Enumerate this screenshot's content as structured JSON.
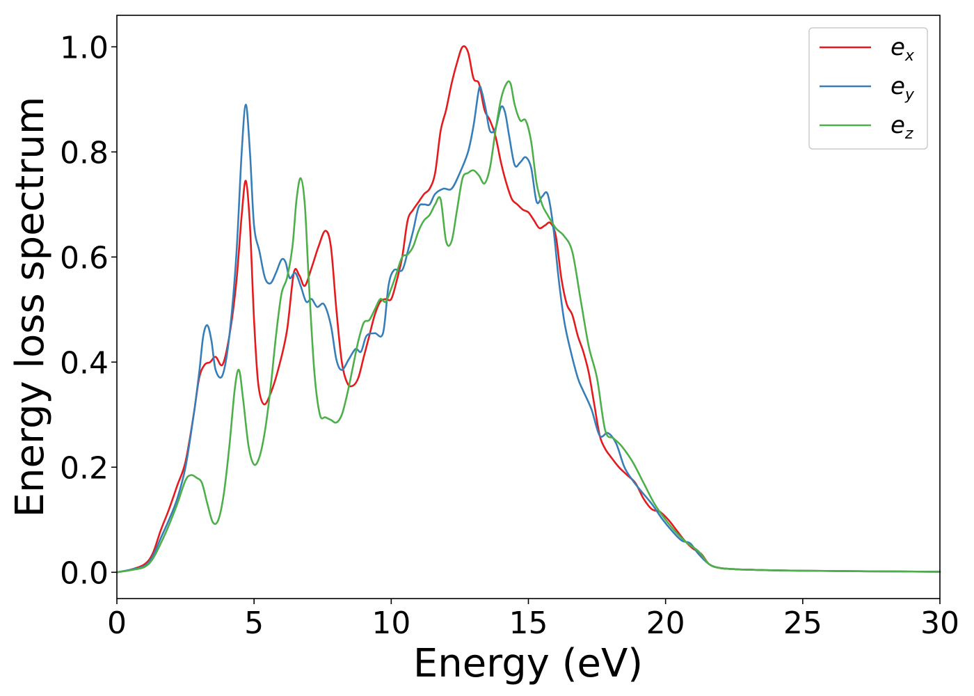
{
  "chart_data": {
    "type": "line",
    "title": "",
    "xlabel": "Energy (eV)",
    "ylabel": "Energy loss spectrum",
    "xlim": [
      0,
      30
    ],
    "ylim": [
      -0.05,
      1.06
    ],
    "xticks": [
      0,
      5,
      10,
      15,
      20,
      25,
      30
    ],
    "xtick_labels": [
      "0",
      "5",
      "10",
      "15",
      "20",
      "25",
      "30"
    ],
    "yticks": [
      0.0,
      0.2,
      0.4,
      0.6,
      0.8,
      1.0
    ],
    "ytick_labels": [
      "0.0",
      "0.2",
      "0.4",
      "0.6",
      "0.8",
      "1.0"
    ],
    "grid": false,
    "legend_position": "top-right",
    "series": [
      {
        "name": "e_x",
        "label_base": "e",
        "label_sub": "x",
        "color": "#e41a1c",
        "x": [
          0,
          0.5,
          1.0,
          1.3,
          1.6,
          1.9,
          2.2,
          2.5,
          2.8,
          3.0,
          3.2,
          3.4,
          3.6,
          3.85,
          4.1,
          4.35,
          4.55,
          4.7,
          4.85,
          5.0,
          5.15,
          5.35,
          5.6,
          5.9,
          6.2,
          6.45,
          6.65,
          6.85,
          7.1,
          7.35,
          7.6,
          7.8,
          8.0,
          8.2,
          8.4,
          8.6,
          8.8,
          9.0,
          9.2,
          9.4,
          9.6,
          9.8,
          10.0,
          10.2,
          10.4,
          10.6,
          10.8,
          11.0,
          11.2,
          11.4,
          11.6,
          11.8,
          12.0,
          12.2,
          12.4,
          12.6,
          12.8,
          13.0,
          13.2,
          13.4,
          13.6,
          13.8,
          14.0,
          14.2,
          14.4,
          14.6,
          14.8,
          15.0,
          15.2,
          15.4,
          15.6,
          15.8,
          16.0,
          16.2,
          16.4,
          16.6,
          16.8,
          17.0,
          17.2,
          17.4,
          17.6,
          17.8,
          18.0,
          18.3,
          18.6,
          18.9,
          19.2,
          19.5,
          19.8,
          20.1,
          20.4,
          20.7,
          21.0,
          21.3,
          21.6,
          22.0,
          22.5,
          23,
          25,
          30
        ],
        "y": [
          0,
          0.005,
          0.015,
          0.035,
          0.08,
          0.12,
          0.165,
          0.21,
          0.3,
          0.37,
          0.395,
          0.4,
          0.41,
          0.395,
          0.45,
          0.55,
          0.68,
          0.745,
          0.66,
          0.48,
          0.36,
          0.32,
          0.34,
          0.39,
          0.46,
          0.57,
          0.565,
          0.545,
          0.58,
          0.62,
          0.65,
          0.62,
          0.5,
          0.4,
          0.36,
          0.355,
          0.37,
          0.41,
          0.45,
          0.49,
          0.515,
          0.52,
          0.52,
          0.555,
          0.6,
          0.67,
          0.69,
          0.705,
          0.72,
          0.73,
          0.76,
          0.84,
          0.88,
          0.93,
          0.97,
          1.0,
          0.99,
          0.94,
          0.93,
          0.88,
          0.86,
          0.83,
          0.78,
          0.74,
          0.71,
          0.7,
          0.69,
          0.685,
          0.67,
          0.655,
          0.66,
          0.665,
          0.64,
          0.56,
          0.51,
          0.49,
          0.45,
          0.42,
          0.38,
          0.32,
          0.26,
          0.235,
          0.22,
          0.2,
          0.185,
          0.17,
          0.14,
          0.12,
          0.115,
          0.1,
          0.08,
          0.06,
          0.045,
          0.035,
          0.015,
          0.008,
          0.006,
          0.005,
          0.003,
          0.001
        ]
      },
      {
        "name": "e_y",
        "label_base": "e",
        "label_sub": "y",
        "color": "#377eb8",
        "x": [
          0,
          0.5,
          1.0,
          1.3,
          1.6,
          1.9,
          2.2,
          2.5,
          2.8,
          3.0,
          3.15,
          3.3,
          3.45,
          3.6,
          3.85,
          4.1,
          4.35,
          4.55,
          4.7,
          4.85,
          5.0,
          5.2,
          5.4,
          5.6,
          5.8,
          6.0,
          6.15,
          6.3,
          6.5,
          6.7,
          6.9,
          7.1,
          7.3,
          7.55,
          7.8,
          8.0,
          8.2,
          8.45,
          8.7,
          8.9,
          9.1,
          9.4,
          9.7,
          9.9,
          10.1,
          10.4,
          10.6,
          10.8,
          11.0,
          11.2,
          11.4,
          11.6,
          11.9,
          12.2,
          12.5,
          12.8,
          13.0,
          13.2,
          13.3,
          13.45,
          13.6,
          13.8,
          14.0,
          14.15,
          14.3,
          14.5,
          14.7,
          14.9,
          15.1,
          15.3,
          15.5,
          15.7,
          15.9,
          16.1,
          16.3,
          16.5,
          16.8,
          17.0,
          17.3,
          17.6,
          17.9,
          18.2,
          18.5,
          18.8,
          19.1,
          19.5,
          19.9,
          20.3,
          20.6,
          20.9,
          21.2,
          21.6,
          22.0,
          22.5,
          23,
          25,
          30
        ],
        "y": [
          0,
          0.005,
          0.012,
          0.03,
          0.065,
          0.1,
          0.14,
          0.2,
          0.3,
          0.38,
          0.45,
          0.47,
          0.44,
          0.385,
          0.375,
          0.45,
          0.6,
          0.8,
          0.89,
          0.8,
          0.66,
          0.61,
          0.56,
          0.55,
          0.57,
          0.595,
          0.59,
          0.56,
          0.57,
          0.545,
          0.515,
          0.52,
          0.505,
          0.51,
          0.47,
          0.405,
          0.385,
          0.405,
          0.425,
          0.42,
          0.45,
          0.455,
          0.455,
          0.545,
          0.575,
          0.575,
          0.61,
          0.65,
          0.695,
          0.7,
          0.7,
          0.72,
          0.73,
          0.73,
          0.76,
          0.8,
          0.85,
          0.92,
          0.915,
          0.88,
          0.84,
          0.845,
          0.885,
          0.875,
          0.83,
          0.775,
          0.78,
          0.79,
          0.77,
          0.705,
          0.715,
          0.72,
          0.66,
          0.56,
          0.48,
          0.43,
          0.37,
          0.345,
          0.31,
          0.26,
          0.265,
          0.245,
          0.2,
          0.175,
          0.155,
          0.13,
          0.1,
          0.075,
          0.06,
          0.055,
          0.035,
          0.015,
          0.008,
          0.006,
          0.005,
          0.003,
          0.001
        ]
      },
      {
        "name": "e_z",
        "label_base": "e",
        "label_sub": "z",
        "color": "#4daf4a",
        "x": [
          0,
          0.5,
          1.0,
          1.3,
          1.6,
          1.9,
          2.2,
          2.5,
          2.7,
          2.9,
          3.1,
          3.3,
          3.5,
          3.7,
          3.9,
          4.1,
          4.3,
          4.45,
          4.6,
          4.8,
          5.0,
          5.2,
          5.4,
          5.6,
          5.8,
          6.0,
          6.2,
          6.4,
          6.55,
          6.7,
          6.85,
          7.0,
          7.2,
          7.4,
          7.6,
          7.8,
          8.0,
          8.2,
          8.4,
          8.6,
          8.8,
          9.0,
          9.2,
          9.4,
          9.6,
          9.8,
          10.0,
          10.2,
          10.4,
          10.6,
          10.8,
          11.0,
          11.2,
          11.4,
          11.6,
          11.8,
          12.0,
          12.2,
          12.4,
          12.6,
          12.8,
          13.0,
          13.2,
          13.4,
          13.6,
          13.8,
          14.0,
          14.2,
          14.35,
          14.5,
          14.7,
          14.9,
          15.1,
          15.3,
          15.5,
          15.7,
          16.0,
          16.3,
          16.6,
          16.9,
          17.2,
          17.5,
          17.8,
          18.1,
          18.4,
          18.8,
          19.2,
          19.6,
          20.0,
          20.4,
          20.8,
          21.2,
          21.6,
          22.0,
          22.5,
          23,
          25,
          30
        ],
        "y": [
          0,
          0.004,
          0.01,
          0.025,
          0.055,
          0.09,
          0.13,
          0.175,
          0.185,
          0.18,
          0.17,
          0.13,
          0.095,
          0.1,
          0.15,
          0.24,
          0.35,
          0.385,
          0.33,
          0.24,
          0.205,
          0.22,
          0.27,
          0.35,
          0.45,
          0.53,
          0.56,
          0.62,
          0.71,
          0.75,
          0.7,
          0.55,
          0.38,
          0.3,
          0.295,
          0.29,
          0.285,
          0.3,
          0.34,
          0.39,
          0.44,
          0.475,
          0.48,
          0.5,
          0.52,
          0.515,
          0.54,
          0.57,
          0.6,
          0.605,
          0.62,
          0.65,
          0.67,
          0.68,
          0.7,
          0.71,
          0.63,
          0.63,
          0.69,
          0.75,
          0.76,
          0.765,
          0.755,
          0.74,
          0.77,
          0.84,
          0.9,
          0.93,
          0.93,
          0.89,
          0.86,
          0.86,
          0.82,
          0.74,
          0.7,
          0.68,
          0.655,
          0.64,
          0.61,
          0.52,
          0.43,
          0.37,
          0.27,
          0.255,
          0.24,
          0.21,
          0.17,
          0.13,
          0.1,
          0.075,
          0.055,
          0.04,
          0.015,
          0.008,
          0.006,
          0.005,
          0.003,
          0.001
        ]
      }
    ]
  }
}
